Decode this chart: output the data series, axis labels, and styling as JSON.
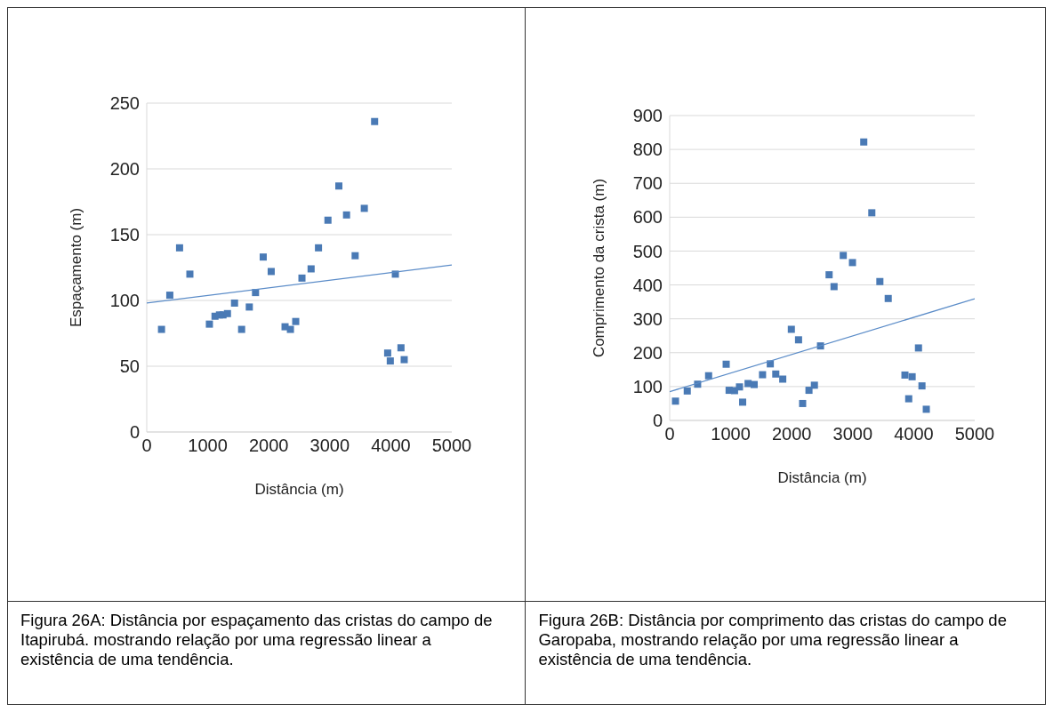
{
  "chart_data": [
    {
      "type": "scatter",
      "xlabel": "Distância (m)",
      "ylabel": "Espaçamento (m)",
      "xlim": [
        0,
        5000
      ],
      "xticks": [
        0,
        1000,
        2000,
        3000,
        4000,
        5000
      ],
      "ylim": [
        0,
        250
      ],
      "yticks": [
        0,
        50,
        100,
        150,
        200,
        250
      ],
      "grid": "y",
      "annotations": [
        "Figura 26A: Distância por espaçamento das cristas do campo de Itapirubá. mostrando relação por uma regressão linear a existência de uma tendência."
      ],
      "series": [
        {
          "marker": "square",
          "color": "#4a7ab5",
          "x": [
            242,
            378,
            538,
            707,
            1027,
            1119,
            1192,
            1250,
            1323,
            1439,
            1555,
            1681,
            1783,
            1909,
            2040,
            2267,
            2355,
            2442,
            2544,
            2694,
            2815,
            2970,
            3149,
            3275,
            3416,
            3566,
            3735,
            3949,
            3992,
            4075,
            4167,
            4220
          ],
          "values": [
            78,
            104,
            140,
            120,
            82,
            88,
            89,
            89,
            90,
            98,
            78,
            95,
            106,
            133,
            122,
            80,
            78,
            84,
            117,
            124,
            140,
            161,
            187,
            165,
            134,
            170,
            236,
            60,
            54,
            120,
            64,
            55
          ]
        },
        {
          "type": "line",
          "color": "#5b8cc8",
          "x": [
            0,
            5000
          ],
          "values": [
            98,
            127
          ]
        }
      ]
    },
    {
      "type": "scatter",
      "xlabel": "Distância (m)",
      "ylabel": "Comprimento da crista (m)",
      "xlim": [
        0,
        5000
      ],
      "xticks": [
        0,
        1000,
        2000,
        3000,
        4000,
        5000
      ],
      "ylim": [
        0,
        900
      ],
      "yticks": [
        0,
        100,
        200,
        300,
        400,
        500,
        600,
        700,
        800,
        900
      ],
      "grid": "y",
      "annotations": [
        "Figura 26B: Distância por comprimento das cristas do campo de Garopaba, mostrando relação por uma regressão linear a existência de uma tendência."
      ],
      "series": [
        {
          "marker": "square",
          "color": "#4a7ab5",
          "x": [
            95,
            288,
            458,
            638,
            926,
            974,
            1063,
            1144,
            1196,
            1285,
            1385,
            1522,
            1649,
            1739,
            1853,
            1994,
            2112,
            2179,
            2283,
            2372,
            2472,
            2613,
            2694,
            2845,
            2996,
            3181,
            3313,
            3445,
            3582,
            3856,
            3918,
            3974,
            4078,
            4135,
            4206
          ],
          "values": [
            57,
            87,
            107,
            132,
            166,
            89,
            88,
            99,
            54,
            109,
            106,
            135,
            167,
            137,
            122,
            269,
            238,
            50,
            89,
            104,
            220,
            430,
            395,
            487,
            466,
            822,
            613,
            410,
            360,
            134,
            64,
            129,
            214,
            102,
            33
          ]
        },
        {
          "type": "line",
          "color": "#5b8cc8",
          "x": [
            0,
            5000
          ],
          "values": [
            85,
            359
          ]
        }
      ]
    }
  ]
}
